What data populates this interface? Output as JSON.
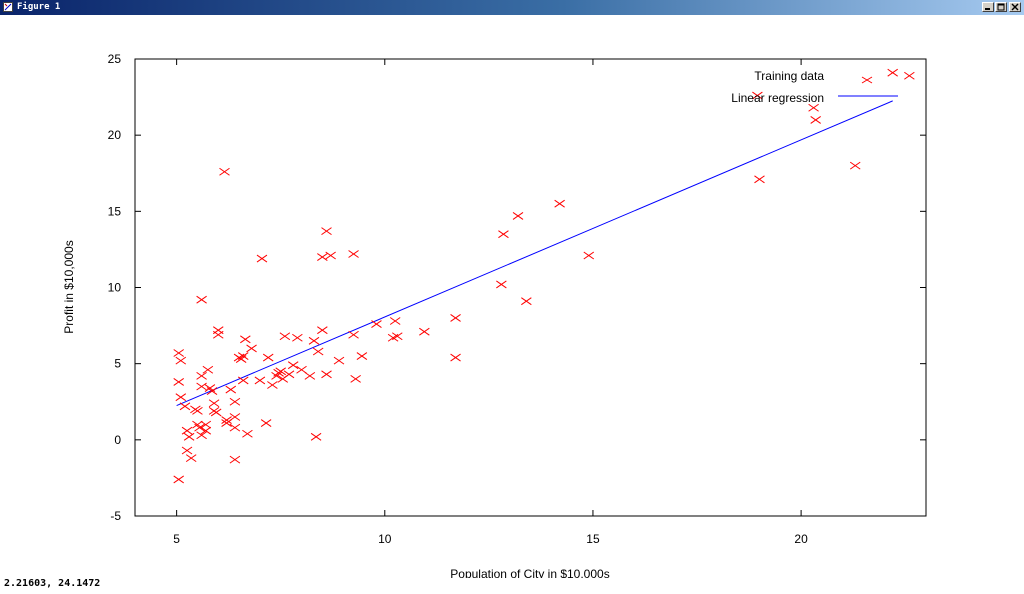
{
  "window": {
    "title": "Figure 1"
  },
  "status": {
    "coords": "2.21603, 24.1472"
  },
  "chart_data": {
    "type": "scatter",
    "title": "",
    "xlabel": "Population of City in $10,000s",
    "ylabel": "Profit in $10,000s",
    "xlim": [
      4,
      23
    ],
    "ylim": [
      -5,
      25
    ],
    "xticks": [
      5,
      10,
      15,
      20
    ],
    "yticks": [
      -5,
      0,
      5,
      10,
      15,
      20,
      25
    ],
    "grid": false,
    "legend": "top-right",
    "series": [
      {
        "name": "Training data",
        "type": "scatter",
        "marker": "x",
        "color": "#ff0000",
        "points": [
          [
            5.05,
            5.7
          ],
          [
            5.1,
            5.2
          ],
          [
            5.05,
            3.8
          ],
          [
            5.1,
            2.8
          ],
          [
            5.05,
            -2.6
          ],
          [
            5.2,
            2.2
          ],
          [
            5.25,
            0.6
          ],
          [
            5.3,
            0.2
          ],
          [
            5.25,
            -0.7
          ],
          [
            5.35,
            -1.2
          ],
          [
            5.5,
            1.9
          ],
          [
            5.45,
            2.0
          ],
          [
            5.6,
            3.5
          ],
          [
            5.6,
            4.2
          ],
          [
            5.5,
            1.0
          ],
          [
            5.55,
            0.8
          ],
          [
            5.6,
            0.3
          ],
          [
            5.7,
            0.6
          ],
          [
            5.7,
            1.0
          ],
          [
            5.8,
            3.4
          ],
          [
            5.75,
            4.6
          ],
          [
            5.85,
            3.2
          ],
          [
            5.9,
            2.4
          ],
          [
            5.9,
            1.9
          ],
          [
            5.95,
            1.8
          ],
          [
            6.0,
            7.2
          ],
          [
            6.0,
            6.9
          ],
          [
            5.6,
            9.2
          ],
          [
            6.15,
            17.6
          ],
          [
            6.2,
            1.3
          ],
          [
            6.2,
            1.1
          ],
          [
            6.3,
            3.3
          ],
          [
            6.4,
            2.5
          ],
          [
            6.4,
            1.5
          ],
          [
            6.4,
            0.8
          ],
          [
            6.4,
            -1.3
          ],
          [
            6.5,
            5.4
          ],
          [
            6.55,
            5.3
          ],
          [
            6.6,
            5.5
          ],
          [
            6.6,
            3.9
          ],
          [
            6.65,
            6.6
          ],
          [
            6.7,
            0.4
          ],
          [
            6.8,
            6.0
          ],
          [
            7.0,
            3.9
          ],
          [
            7.05,
            11.9
          ],
          [
            7.15,
            1.1
          ],
          [
            7.2,
            5.4
          ],
          [
            7.3,
            3.6
          ],
          [
            7.4,
            4.2
          ],
          [
            7.45,
            4.4
          ],
          [
            7.5,
            4.5
          ],
          [
            7.55,
            4.0
          ],
          [
            7.6,
            6.8
          ],
          [
            7.7,
            4.3
          ],
          [
            7.8,
            4.9
          ],
          [
            7.9,
            6.7
          ],
          [
            8.0,
            4.6
          ],
          [
            8.2,
            4.2
          ],
          [
            8.3,
            6.5
          ],
          [
            8.35,
            0.2
          ],
          [
            8.4,
            5.8
          ],
          [
            8.5,
            12.0
          ],
          [
            8.5,
            7.2
          ],
          [
            8.6,
            13.7
          ],
          [
            8.6,
            4.3
          ],
          [
            8.7,
            12.1
          ],
          [
            8.9,
            5.2
          ],
          [
            9.25,
            6.9
          ],
          [
            9.25,
            12.2
          ],
          [
            9.3,
            4.0
          ],
          [
            9.45,
            5.5
          ],
          [
            9.8,
            7.6
          ],
          [
            10.2,
            6.7
          ],
          [
            10.25,
            7.8
          ],
          [
            10.3,
            6.8
          ],
          [
            10.95,
            7.1
          ],
          [
            11.7,
            8.0
          ],
          [
            11.7,
            5.4
          ],
          [
            12.8,
            10.2
          ],
          [
            12.85,
            13.5
          ],
          [
            13.2,
            14.7
          ],
          [
            13.4,
            9.1
          ],
          [
            14.2,
            15.5
          ],
          [
            14.9,
            12.1
          ],
          [
            18.95,
            22.6
          ],
          [
            19.0,
            17.1
          ],
          [
            20.3,
            21.8
          ],
          [
            20.35,
            21.0
          ],
          [
            21.3,
            18.0
          ],
          [
            22.2,
            24.1
          ],
          [
            22.6,
            23.9
          ]
        ]
      },
      {
        "name": "Linear regression",
        "type": "line",
        "color": "#0000ff",
        "x": [
          5.0,
          22.2
        ],
        "y": [
          2.25,
          22.25
        ]
      }
    ]
  }
}
